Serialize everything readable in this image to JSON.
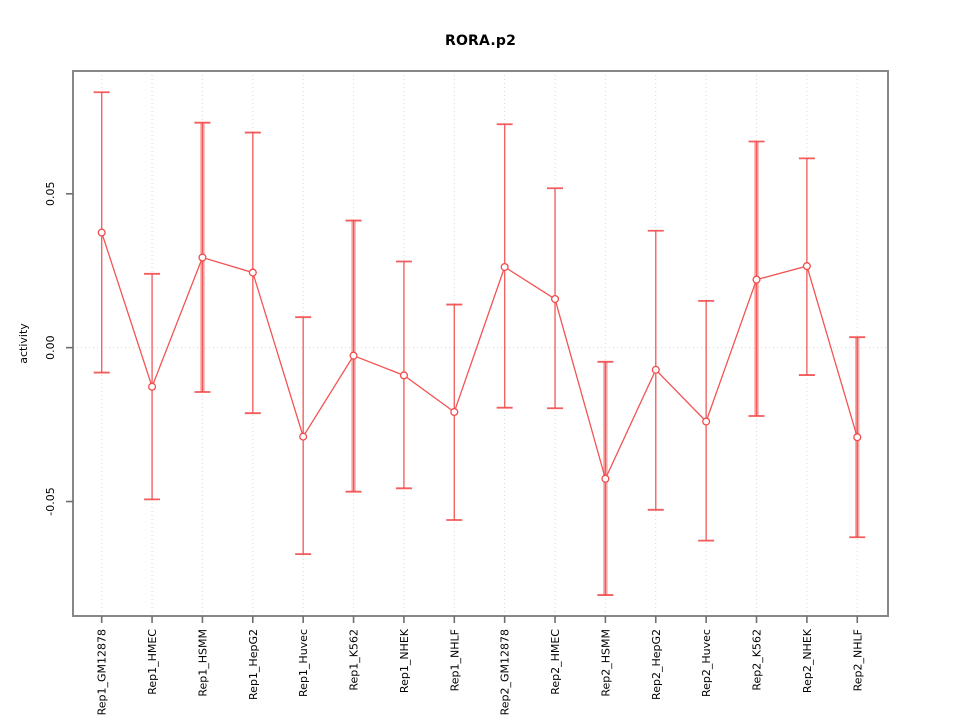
{
  "title": "RORA.p2",
  "colors": {
    "series_red": "#f14b4b",
    "band_pink": "#f8abab",
    "grid_gray": "#d8d8d8",
    "frame_gray": "#878787",
    "tick_gray": "#6e6e6e",
    "text_black": "#000000"
  },
  "chart_data": {
    "type": "line",
    "title": "RORA.p2",
    "xlabel": "",
    "ylabel": "activity",
    "ylim": [
      -0.0872,
      0.0899
    ],
    "y_ticks": [
      0.05,
      0.0,
      -0.05
    ],
    "y_tick_labels": [
      "0.05",
      "0.00",
      "-0.05"
    ],
    "grid": "vertical dotted gridline per category; horizontal dotted line at y=0",
    "legend": "none",
    "marker": "open-circle",
    "categories": [
      "Rep1_GM12878",
      "Rep1_HMEC",
      "Rep1_HSMM",
      "Rep1_HepG2",
      "Rep1_Huvec",
      "Rep1_K562",
      "Rep1_NHEK",
      "Rep1_NHLF",
      "Rep2_GM12878",
      "Rep2_HMEC",
      "Rep2_HSMM",
      "Rep2_HepG2",
      "Rep2_Huvec",
      "Rep2_K562",
      "Rep2_NHEK",
      "Rep2_NHLF"
    ],
    "series": [
      {
        "name": "activity",
        "values": [
          0.0374,
          -0.0127,
          0.0293,
          0.0244,
          -0.0289,
          -0.0026,
          -0.009,
          -0.0209,
          0.0262,
          0.0158,
          -0.0426,
          -0.0072,
          -0.024,
          0.0221,
          0.0265,
          -0.0291
        ],
        "error_high": [
          0.083,
          0.024,
          0.0731,
          0.0699,
          0.0099,
          0.0413,
          0.028,
          0.014,
          0.0726,
          0.0518,
          -0.0046,
          0.038,
          0.0152,
          0.067,
          0.0615,
          0.0034
        ],
        "error_low": [
          -0.0081,
          -0.0493,
          -0.0144,
          -0.0213,
          -0.0671,
          -0.0468,
          -0.0457,
          -0.056,
          -0.0195,
          -0.0197,
          -0.0804,
          -0.0527,
          -0.0627,
          -0.0222,
          -0.0089,
          -0.0616
        ]
      }
    ],
    "wide_band_indices": [
      2,
      5,
      10,
      13,
      15
    ]
  }
}
